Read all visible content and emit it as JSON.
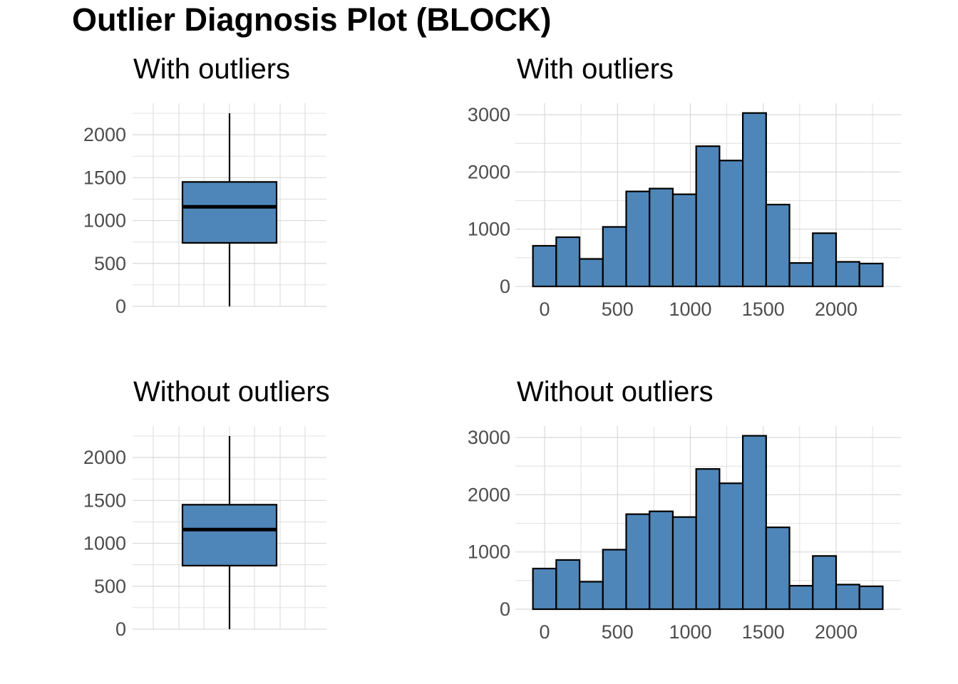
{
  "title": "Outlier Diagnosis Plot (BLOCK)",
  "colors": {
    "fill": "#4f86b9",
    "outline": "#000000",
    "grid": "#d9d9d9",
    "tick_text": "#4d4d4d"
  },
  "chart_data": [
    {
      "type": "box",
      "title": "With outliers",
      "ylim": [
        0,
        2250
      ],
      "y_ticks": [
        "0",
        "500",
        "1000",
        "1500",
        "2000"
      ],
      "stats": {
        "min": 0,
        "q1": 740,
        "median": 1160,
        "q3": 1450,
        "max": 2250
      },
      "grid": true
    },
    {
      "type": "bar",
      "title": "With outliers",
      "xlim": [
        -150,
        2300
      ],
      "ylim": [
        0,
        3050
      ],
      "x_ticks": [
        "0",
        "500",
        "1000",
        "1500",
        "2000"
      ],
      "y_ticks": [
        "0",
        "1000",
        "2000",
        "3000"
      ],
      "bin_width": 160,
      "bin_start": -80,
      "values": [
        710,
        860,
        480,
        1040,
        1660,
        1710,
        1610,
        2450,
        2200,
        3030,
        1430,
        410,
        930,
        430,
        400
      ],
      "grid": true
    },
    {
      "type": "box",
      "title": "Without outliers",
      "ylim": [
        0,
        2250
      ],
      "y_ticks": [
        "0",
        "500",
        "1000",
        "1500",
        "2000"
      ],
      "stats": {
        "min": 0,
        "q1": 740,
        "median": 1160,
        "q3": 1450,
        "max": 2250
      },
      "grid": true
    },
    {
      "type": "bar",
      "title": "Without outliers",
      "xlim": [
        -150,
        2300
      ],
      "ylim": [
        0,
        3050
      ],
      "x_ticks": [
        "0",
        "500",
        "1000",
        "1500",
        "2000"
      ],
      "y_ticks": [
        "0",
        "1000",
        "2000",
        "3000"
      ],
      "bin_width": 160,
      "bin_start": -80,
      "values": [
        710,
        860,
        480,
        1040,
        1660,
        1710,
        1610,
        2450,
        2200,
        3030,
        1430,
        410,
        930,
        430,
        400
      ],
      "grid": true
    }
  ]
}
